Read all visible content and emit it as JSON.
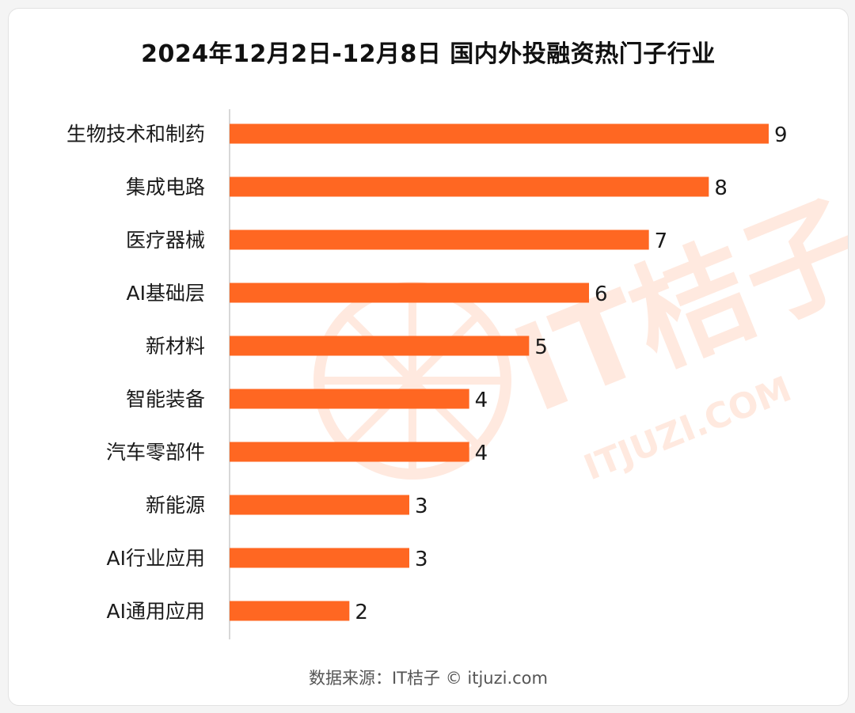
{
  "title": "2024年12月2日-12月8日 国内外投融资热门子行业",
  "source": "数据来源：IT桔子 © itjuzi.com",
  "watermark": {
    "brand": "IT桔子",
    "url": "ITJUZI.COM"
  },
  "colors": {
    "bar": "#ff6722",
    "axis": "#cccccc",
    "watermark": "#ffe9df"
  },
  "chart_data": {
    "type": "bar",
    "orientation": "horizontal",
    "categories": [
      "生物技术和制药",
      "集成电路",
      "医疗器械",
      "AI基础层",
      "新材料",
      "智能装备",
      "汽车零部件",
      "新能源",
      "AI行业应用",
      "AI通用应用"
    ],
    "values": [
      9,
      8,
      7,
      6,
      5,
      4,
      4,
      3,
      3,
      2
    ],
    "title": "2024年12月2日-12月8日 国内外投融资热门子行业",
    "xlabel": "",
    "ylabel": "",
    "xlim": [
      0,
      9
    ],
    "grid": false,
    "legend": "none",
    "data_labels": true
  }
}
